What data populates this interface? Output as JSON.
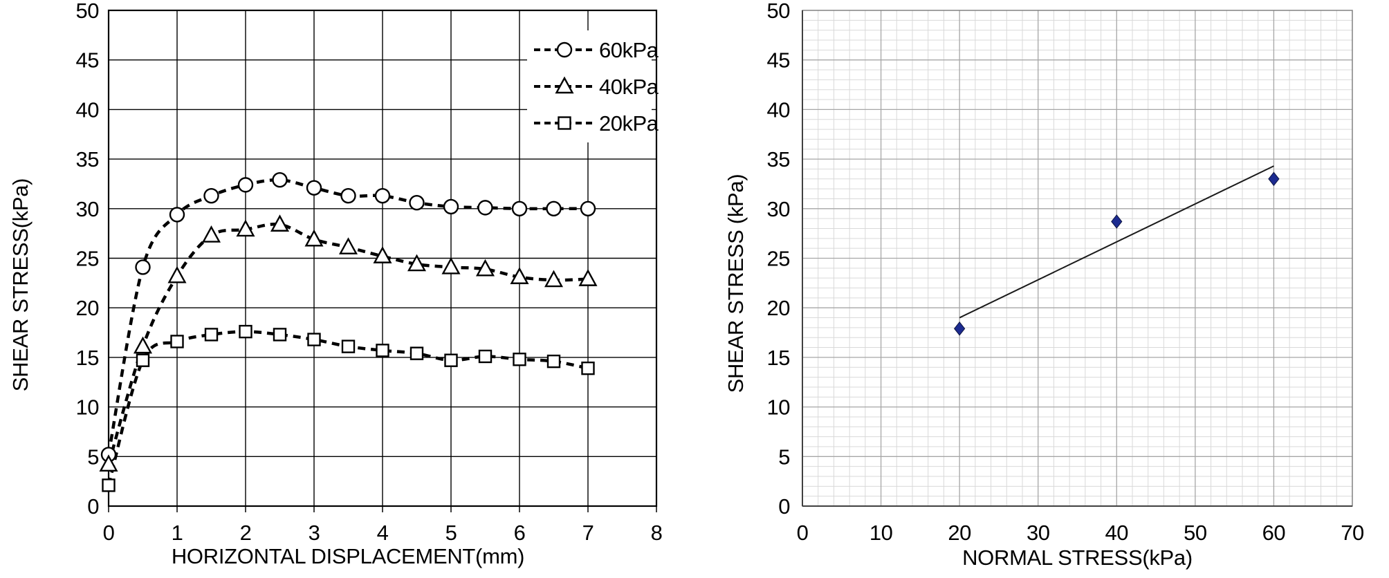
{
  "figure": {
    "background": "#ffffff",
    "text_color": "#000000"
  },
  "chart_data": [
    {
      "id": "shear-displacement",
      "type": "line",
      "title": "",
      "xlabel": "HORIZONTAL DISPLACEMENT(mm)",
      "ylabel": "SHEAR STRESS(kPa)",
      "xlim": [
        0,
        8
      ],
      "ylim": [
        0,
        50
      ],
      "xticks": [
        "0",
        "1",
        "2",
        "3",
        "4",
        "5",
        "6",
        "7",
        "8"
      ],
      "yticks": [
        "0",
        "5",
        "10",
        "15",
        "20",
        "25",
        "30",
        "35",
        "40",
        "45",
        "50"
      ],
      "grid": "major solid black, every 1 mm and 5 kPa",
      "line_style": "dashed smoothed",
      "line_color": "#000000",
      "marker_fill": "#ffffff",
      "legend_position": "inside top-right",
      "x": [
        0,
        0.5,
        1,
        1.5,
        2,
        2.5,
        3,
        3.5,
        4,
        4.5,
        5,
        5.5,
        6,
        6.5,
        7
      ],
      "series": [
        {
          "name": "60kPa",
          "marker": "circle",
          "values": [
            5.2,
            24.1,
            29.4,
            31.3,
            32.4,
            32.9,
            32.1,
            31.3,
            31.3,
            30.6,
            30.2,
            30.1,
            30.0,
            30.0,
            30.0
          ]
        },
        {
          "name": "40kPa",
          "marker": "triangle",
          "values": [
            4.2,
            16.1,
            23.2,
            27.3,
            27.9,
            28.4,
            26.9,
            26.1,
            25.2,
            24.4,
            24.1,
            23.9,
            23.1,
            22.8,
            22.9
          ]
        },
        {
          "name": "20kPa",
          "marker": "square",
          "values": [
            2.1,
            14.7,
            16.6,
            17.3,
            17.6,
            17.3,
            16.8,
            16.1,
            15.7,
            15.4,
            14.7,
            15.1,
            14.8,
            14.6,
            13.9
          ]
        }
      ]
    },
    {
      "id": "failure-envelope",
      "type": "scatter",
      "title": "",
      "xlabel": "NORMAL STRESS(kPa)",
      "ylabel": "SHEAR STRESS (kPa)",
      "xlim": [
        0,
        70
      ],
      "ylim": [
        0,
        50
      ],
      "xticks": [
        "0",
        "10",
        "20",
        "30",
        "40",
        "50",
        "60",
        "70"
      ],
      "yticks": [
        "0",
        "5",
        "10",
        "15",
        "20",
        "25",
        "30",
        "35",
        "40",
        "45",
        "50"
      ],
      "grid": "major gray plus fine minor grid",
      "minor_grid_step": {
        "x": 2,
        "y": 1
      },
      "major_grid_color": "#a6a6a6",
      "minor_grid_color": "#d9d9d9",
      "border_color": "#808080",
      "axis_color": "#404040",
      "points": [
        {
          "x": 20,
          "y": 17.9
        },
        {
          "x": 40,
          "y": 28.7
        },
        {
          "x": 60,
          "y": 33.0
        }
      ],
      "point_marker": "diamond",
      "point_color": "#1c2b90",
      "point_edge_color": "#0d1440",
      "trendline": {
        "x1": 20,
        "y1": 19.0,
        "x2": 60,
        "y2": 34.3,
        "color": "#1a1a1a"
      }
    }
  ]
}
